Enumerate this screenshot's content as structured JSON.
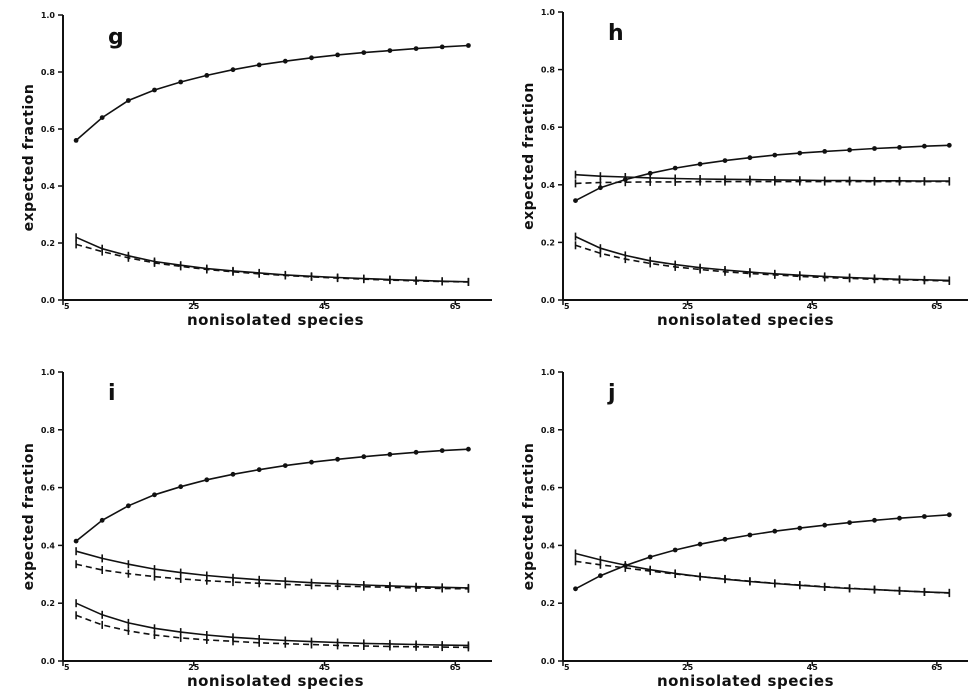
{
  "chart_data": [
    {
      "type": "line",
      "panel": "g",
      "xlabel": "nonisolated species",
      "ylabel": "expected fraction",
      "xlim": [
        5,
        70
      ],
      "ylim": [
        0.0,
        1.0
      ],
      "x_ticks": [
        "5",
        "25",
        "45",
        "65"
      ],
      "y_ticks": [
        "0.0",
        "0.2",
        "0.4",
        "0.6",
        "0.8",
        "1.0"
      ],
      "x": [
        7,
        11,
        15,
        19,
        23,
        27,
        31,
        35,
        39,
        43,
        47,
        51,
        55,
        59,
        63,
        67
      ],
      "series": [
        {
          "style": "solid-dot",
          "values": [
            0.56,
            0.64,
            0.7,
            0.737,
            0.765,
            0.788,
            0.808,
            0.825,
            0.838,
            0.85,
            0.86,
            0.868,
            0.875,
            0.882,
            0.888,
            0.893
          ]
        },
        {
          "style": "solid-tick",
          "values": [
            0.22,
            0.18,
            0.155,
            0.135,
            0.122,
            0.11,
            0.102,
            0.095,
            0.088,
            0.083,
            0.079,
            0.075,
            0.072,
            0.069,
            0.066,
            0.064
          ]
        },
        {
          "style": "dashed-tick",
          "values": [
            0.195,
            0.17,
            0.148,
            0.13,
            0.118,
            0.107,
            0.099,
            0.092,
            0.086,
            0.081,
            0.077,
            0.073,
            0.07,
            0.067,
            0.065,
            0.063
          ]
        }
      ]
    },
    {
      "type": "line",
      "panel": "h",
      "xlabel": "nonisolated species",
      "ylabel": "expected fraction",
      "xlim": [
        5,
        70
      ],
      "ylim": [
        0.0,
        1.0
      ],
      "x_ticks": [
        "5",
        "25",
        "45",
        "65"
      ],
      "y_ticks": [
        "0.0",
        "0.2",
        "0.4",
        "0.6",
        "0.8",
        "1.0"
      ],
      "x": [
        7,
        11,
        15,
        19,
        23,
        27,
        31,
        35,
        39,
        43,
        47,
        51,
        55,
        59,
        63,
        67
      ],
      "series": [
        {
          "style": "solid-dot",
          "values": [
            0.345,
            0.39,
            0.418,
            0.44,
            0.458,
            0.472,
            0.484,
            0.494,
            0.503,
            0.51,
            0.516,
            0.521,
            0.526,
            0.53,
            0.534,
            0.537
          ]
        },
        {
          "style": "solid-tick",
          "values": [
            0.435,
            0.43,
            0.427,
            0.424,
            0.422,
            0.42,
            0.419,
            0.418,
            0.417,
            0.416,
            0.415,
            0.415,
            0.414,
            0.414,
            0.413,
            0.413
          ]
        },
        {
          "style": "dashed-tick",
          "values": [
            0.405,
            0.408,
            0.409,
            0.41,
            0.41,
            0.411,
            0.411,
            0.411,
            0.411,
            0.411,
            0.411,
            0.411,
            0.411,
            0.411,
            0.411,
            0.411
          ]
        },
        {
          "style": "solid-tick",
          "values": [
            0.22,
            0.18,
            0.155,
            0.136,
            0.123,
            0.112,
            0.104,
            0.097,
            0.091,
            0.086,
            0.082,
            0.078,
            0.075,
            0.072,
            0.07,
            0.068
          ]
        },
        {
          "style": "dashed-tick",
          "values": [
            0.19,
            0.162,
            0.142,
            0.127,
            0.115,
            0.106,
            0.098,
            0.092,
            0.087,
            0.082,
            0.078,
            0.075,
            0.072,
            0.07,
            0.068,
            0.066
          ]
        }
      ]
    },
    {
      "type": "line",
      "panel": "i",
      "xlabel": "nonisolated species",
      "ylabel": "expected fraction",
      "xlim": [
        5,
        70
      ],
      "ylim": [
        0.0,
        1.0
      ],
      "x_ticks": [
        "5",
        "25",
        "45",
        "65"
      ],
      "y_ticks": [
        "0.0",
        "0.2",
        "0.4",
        "0.6",
        "0.8",
        "1.0"
      ],
      "x": [
        7,
        11,
        15,
        19,
        23,
        27,
        31,
        35,
        39,
        43,
        47,
        51,
        55,
        59,
        63,
        67
      ],
      "series": [
        {
          "style": "solid-dot",
          "values": [
            0.415,
            0.487,
            0.537,
            0.575,
            0.603,
            0.627,
            0.646,
            0.662,
            0.676,
            0.688,
            0.698,
            0.707,
            0.715,
            0.722,
            0.728,
            0.733
          ]
        },
        {
          "style": "solid-tick",
          "values": [
            0.38,
            0.355,
            0.335,
            0.318,
            0.306,
            0.296,
            0.288,
            0.281,
            0.276,
            0.271,
            0.267,
            0.263,
            0.26,
            0.257,
            0.255,
            0.253
          ]
        },
        {
          "style": "dashed-tick",
          "values": [
            0.335,
            0.315,
            0.302,
            0.292,
            0.284,
            0.278,
            0.273,
            0.269,
            0.265,
            0.262,
            0.259,
            0.257,
            0.255,
            0.253,
            0.251,
            0.25
          ]
        },
        {
          "style": "solid-tick",
          "values": [
            0.2,
            0.16,
            0.132,
            0.113,
            0.1,
            0.09,
            0.082,
            0.076,
            0.071,
            0.067,
            0.064,
            0.061,
            0.059,
            0.057,
            0.055,
            0.054
          ]
        },
        {
          "style": "dashed-tick",
          "values": [
            0.158,
            0.125,
            0.104,
            0.09,
            0.08,
            0.073,
            0.068,
            0.063,
            0.06,
            0.057,
            0.054,
            0.052,
            0.05,
            0.049,
            0.048,
            0.047
          ]
        }
      ]
    },
    {
      "type": "line",
      "panel": "j",
      "xlabel": "nonisolated species",
      "ylabel": "expected fraction",
      "xlim": [
        5,
        70
      ],
      "ylim": [
        0.0,
        1.0
      ],
      "x_ticks": [
        "5",
        "25",
        "45",
        "65"
      ],
      "y_ticks": [
        "0.0",
        "0.2",
        "0.4",
        "0.6",
        "0.8",
        "1.0"
      ],
      "x": [
        7,
        11,
        15,
        19,
        23,
        27,
        31,
        35,
        39,
        43,
        47,
        51,
        55,
        59,
        63,
        67
      ],
      "series": [
        {
          "style": "solid-dot",
          "values": [
            0.25,
            0.295,
            0.33,
            0.36,
            0.384,
            0.404,
            0.421,
            0.436,
            0.449,
            0.46,
            0.47,
            0.479,
            0.487,
            0.494,
            0.5,
            0.506
          ]
        },
        {
          "style": "solid-tick",
          "values": [
            0.372,
            0.35,
            0.332,
            0.316,
            0.303,
            0.292,
            0.283,
            0.275,
            0.268,
            0.262,
            0.256,
            0.251,
            0.247,
            0.243,
            0.239,
            0.236
          ]
        },
        {
          "style": "dashed-tick",
          "values": [
            0.345,
            0.333,
            0.322,
            0.311,
            0.301,
            0.292,
            0.284,
            0.276,
            0.269,
            0.263,
            0.257,
            0.252,
            0.247,
            0.243,
            0.239,
            0.235
          ]
        }
      ]
    }
  ]
}
